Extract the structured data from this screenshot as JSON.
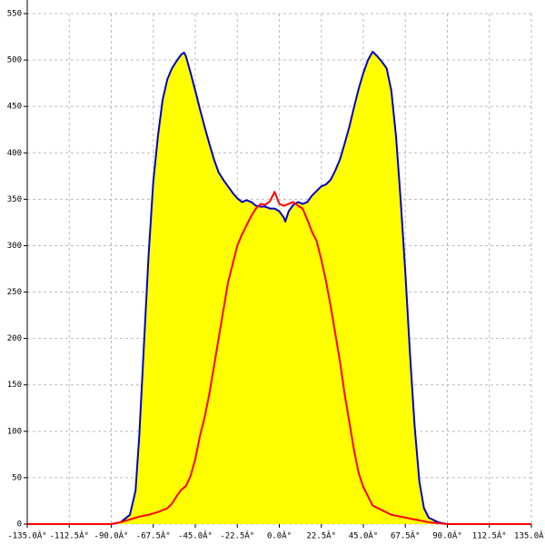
{
  "chart_data": {
    "type": "line",
    "xlim": [
      -135,
      135
    ],
    "ylim": [
      0,
      550
    ],
    "grid": true,
    "xticks": [
      {
        "value": -135,
        "label": "-135.0Â°"
      },
      {
        "value": -112.5,
        "label": "-112.5Â°"
      },
      {
        "value": -90,
        "label": "-90.0Â°"
      },
      {
        "value": -67.5,
        "label": "-67.5Â°"
      },
      {
        "value": -45,
        "label": "-45.0Â°"
      },
      {
        "value": -22.5,
        "label": "-22.5Â°"
      },
      {
        "value": 0,
        "label": "0.0Â°"
      },
      {
        "value": 22.5,
        "label": "22.5Â°"
      },
      {
        "value": 45,
        "label": "45.0Â°"
      },
      {
        "value": 67.5,
        "label": "67.5Â°"
      },
      {
        "value": 90,
        "label": "90.0Â°"
      },
      {
        "value": 112.5,
        "label": "112.5Â°"
      },
      {
        "value": 135,
        "label": "135.0Â°"
      }
    ],
    "yticks": [
      0,
      50,
      100,
      150,
      200,
      250,
      300,
      350,
      400,
      450,
      500,
      550
    ],
    "series": [
      {
        "color": "#0000cc",
        "fill": "#ffff00",
        "x": [
          -135,
          -90,
          -85,
          -80,
          -77,
          -75,
          -72.5,
          -70,
          -67.5,
          -65,
          -62.5,
          -60,
          -57.5,
          -55,
          -52.5,
          -51,
          -50,
          -47.5,
          -45,
          -42.5,
          -40,
          -37.5,
          -35,
          -32.5,
          -30,
          -27.5,
          -25,
          -22.5,
          -20,
          -17.5,
          -15,
          -12.5,
          -10,
          -7.5,
          -5,
          -2.5,
          0,
          2.5,
          3.2,
          5,
          7.5,
          10,
          12.5,
          15,
          17.5,
          20,
          22.5,
          25,
          27.5,
          30,
          32.5,
          35,
          37.5,
          40,
          42.5,
          45,
          47.5,
          50,
          52.5,
          55,
          57.5,
          60,
          62.5,
          65,
          67.5,
          70,
          72.5,
          75,
          77.5,
          80,
          85,
          90,
          135
        ],
        "values": [
          0,
          0,
          2,
          10,
          36,
          95,
          193,
          290,
          369,
          418,
          457,
          479,
          491,
          499,
          506,
          508,
          504,
          486,
          467,
          447,
          428,
          410,
          393,
          379,
          371,
          364,
          357,
          351,
          347,
          349,
          347,
          343,
          342,
          342,
          340,
          340,
          337,
          330,
          326,
          337,
          344,
          347,
          345,
          347,
          354,
          359,
          364,
          366,
          371,
          381,
          393,
          410,
          428,
          449,
          469,
          486,
          500,
          509,
          504,
          498,
          491,
          467,
          418,
          349,
          271,
          183,
          105,
          46,
          17,
          7,
          2,
          0,
          0
        ]
      },
      {
        "color": "#ff0000",
        "x": [
          -135,
          -90,
          -85,
          -80,
          -75,
          -70,
          -65,
          -60,
          -57.5,
          -55,
          -52.5,
          -50,
          -47.5,
          -45,
          -42.5,
          -40,
          -37.5,
          -35,
          -32.5,
          -30,
          -27.5,
          -25,
          -22.5,
          -20,
          -17.5,
          -15,
          -12.5,
          -10,
          -7.5,
          -5,
          -2.5,
          0,
          2.5,
          5,
          7.5,
          10,
          12.5,
          15,
          17.5,
          20,
          22.5,
          25,
          27.5,
          30,
          32.5,
          35,
          37.5,
          40,
          42.5,
          45,
          47.5,
          50,
          55,
          60,
          65,
          70,
          75,
          80,
          85,
          90,
          135
        ],
        "values": [
          0,
          0,
          2,
          5,
          8,
          10,
          13,
          17,
          22,
          30,
          37,
          41,
          52,
          70,
          95,
          115,
          140,
          170,
          200,
          230,
          260,
          280,
          300,
          312,
          322,
          332,
          340,
          345,
          344,
          348,
          358,
          345,
          343,
          345,
          347,
          343,
          340,
          328,
          315,
          305,
          285,
          262,
          235,
          205,
          175,
          140,
          110,
          80,
          55,
          40,
          30,
          20,
          15,
          10,
          8,
          6,
          4,
          2,
          1,
          0,
          0
        ]
      }
    ]
  }
}
